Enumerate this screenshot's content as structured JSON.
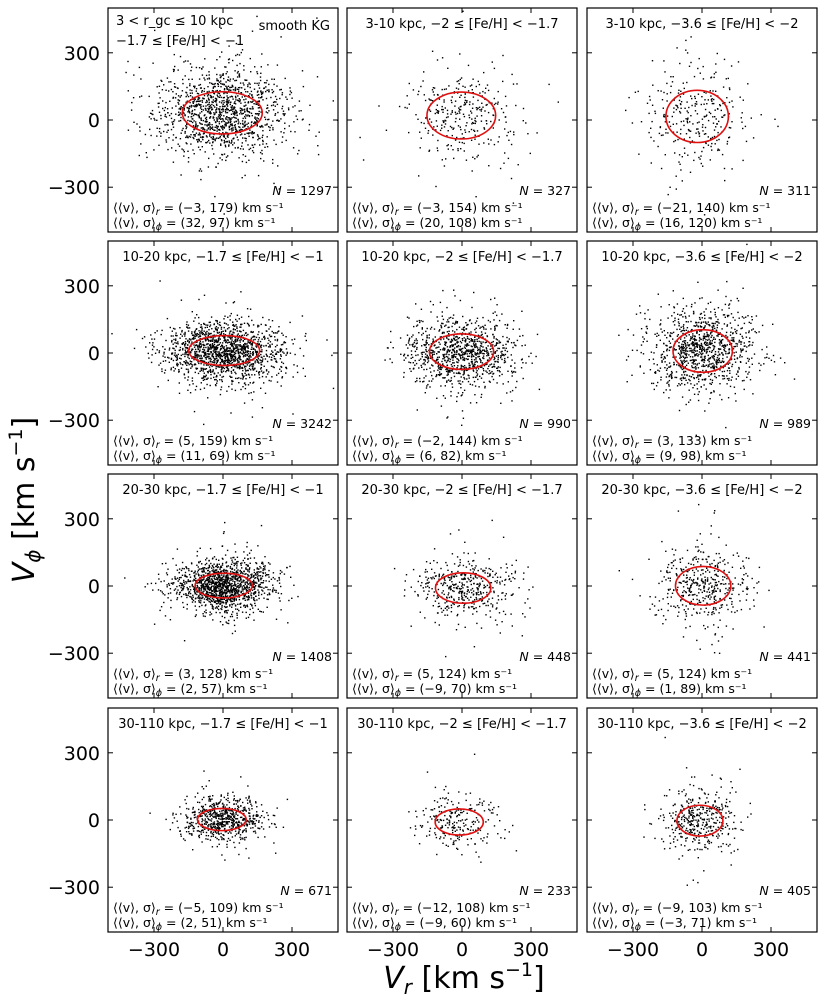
{
  "chart_data": {
    "type": "scatter",
    "layout": "4x3 grid of panels",
    "xlabel": "V_r [km s^-1]",
    "ylabel": "V_phi [km s^-1]",
    "xlim": [
      -500,
      500
    ],
    "ylim": [
      -500,
      500
    ],
    "xticks": [
      -300,
      0,
      300
    ],
    "yticks": [
      -300,
      0,
      300
    ],
    "tick_labels": [
      "−300",
      "0",
      "300"
    ],
    "ellipse_color": "#e01010",
    "point_color": "#000000",
    "panels": [
      {
        "title": "",
        "title_lines": [
          "3 < r_gc ≤ 10 kpc",
          "−1.7 ≤ [Fe/H] < −1"
        ],
        "label": "smooth KG",
        "N": 1297,
        "stat_r": "⟨⟨v⟩, σ⟩_r = (−3, 179) km s⁻¹",
        "stat_phi": "⟨⟨v⟩, σ⟩_ϕ = (32, 97) km s⁻¹",
        "mean_r": -3,
        "sigma_r": 179,
        "mean_phi": 32,
        "sigma_phi": 97
      },
      {
        "title": "3-10 kpc, −2 ≤ [Fe/H] < −1.7",
        "N": 327,
        "stat_r": "⟨⟨v⟩, σ⟩_r = (−3, 154) km s⁻¹",
        "stat_phi": "⟨⟨v⟩, σ⟩_ϕ = (20, 108) km s⁻¹",
        "mean_r": -3,
        "sigma_r": 154,
        "mean_phi": 20,
        "sigma_phi": 108
      },
      {
        "title": "3-10 kpc, −3.6 ≤ [Fe/H] < −2",
        "N": 311,
        "stat_r": "⟨⟨v⟩, σ⟩_r = (−21, 140) km s⁻¹",
        "stat_phi": "⟨⟨v⟩, σ⟩_ϕ = (16, 120) km s⁻¹",
        "mean_r": -21,
        "sigma_r": 140,
        "mean_phi": 16,
        "sigma_phi": 120
      },
      {
        "title": "10-20 kpc, −1.7 ≤ [Fe/H] < −1",
        "N": 3242,
        "stat_r": "⟨⟨v⟩, σ⟩_r = (5, 159) km s⁻¹",
        "stat_phi": "⟨⟨v⟩, σ⟩_ϕ = (11, 69) km s⁻¹",
        "mean_r": 5,
        "sigma_r": 159,
        "mean_phi": 11,
        "sigma_phi": 69
      },
      {
        "title": "10-20 kpc, −2 ≤ [Fe/H] < −1.7",
        "N": 990,
        "stat_r": "⟨⟨v⟩, σ⟩_r = (−2, 144) km s⁻¹",
        "stat_phi": "⟨⟨v⟩, σ⟩_ϕ = (6, 82) km s⁻¹",
        "mean_r": -2,
        "sigma_r": 144,
        "mean_phi": 6,
        "sigma_phi": 82
      },
      {
        "title": "10-20 kpc, −3.6 ≤ [Fe/H] < −2",
        "N": 989,
        "stat_r": "⟨⟨v⟩, σ⟩_r = (3, 133) km s⁻¹",
        "stat_phi": "⟨⟨v⟩, σ⟩_ϕ = (9, 98) km s⁻¹",
        "mean_r": 3,
        "sigma_r": 133,
        "mean_phi": 9,
        "sigma_phi": 98
      },
      {
        "title": "20-30 kpc, −1.7 ≤ [Fe/H] < −1",
        "N": 1408,
        "stat_r": "⟨⟨v⟩, σ⟩_r = (3, 128) km s⁻¹",
        "stat_phi": "⟨⟨v⟩, σ⟩_ϕ = (2, 57) km s⁻¹",
        "mean_r": 3,
        "sigma_r": 128,
        "mean_phi": 2,
        "sigma_phi": 57
      },
      {
        "title": "20-30 kpc, −2 ≤ [Fe/H] < −1.7",
        "N": 448,
        "stat_r": "⟨⟨v⟩, σ⟩_r = (5, 124) km s⁻¹",
        "stat_phi": "⟨⟨v⟩, σ⟩_ϕ = (−9, 70) km s⁻¹",
        "mean_r": 5,
        "sigma_r": 124,
        "mean_phi": -9,
        "sigma_phi": 70
      },
      {
        "title": "20-30 kpc, −3.6 ≤ [Fe/H] < −2",
        "N": 441,
        "stat_r": "⟨⟨v⟩, σ⟩_r = (5, 124) km s⁻¹",
        "stat_phi": "⟨⟨v⟩, σ⟩_ϕ = (1, 89) km s⁻¹",
        "mean_r": 5,
        "sigma_r": 124,
        "mean_phi": 1,
        "sigma_phi": 89
      },
      {
        "title": "30-110 kpc, −1.7 ≤ [Fe/H] < −1",
        "N": 671,
        "stat_r": "⟨⟨v⟩, σ⟩_r = (−5, 109) km s⁻¹",
        "stat_phi": "⟨⟨v⟩, σ⟩_ϕ = (2, 51) km s⁻¹",
        "mean_r": -5,
        "sigma_r": 109,
        "mean_phi": 2,
        "sigma_phi": 51
      },
      {
        "title": "30-110 kpc, −2 ≤ [Fe/H] < −1.7",
        "N": 233,
        "stat_r": "⟨⟨v⟩, σ⟩_r = (−12, 108) km s⁻¹",
        "stat_phi": "⟨⟨v⟩, σ⟩_ϕ = (−9, 60) km s⁻¹",
        "mean_r": -12,
        "sigma_r": 108,
        "mean_phi": -9,
        "sigma_phi": 60
      },
      {
        "title": "30-110 kpc, −3.6 ≤ [Fe/H] < −2",
        "N": 405,
        "stat_r": "⟨⟨v⟩, σ⟩_r = (−9, 103) km s⁻¹",
        "stat_phi": "⟨⟨v⟩, σ⟩_ϕ = (−3, 71) km s⁻¹",
        "mean_r": -9,
        "sigma_r": 103,
        "mean_phi": -3,
        "sigma_phi": 71
      }
    ]
  }
}
